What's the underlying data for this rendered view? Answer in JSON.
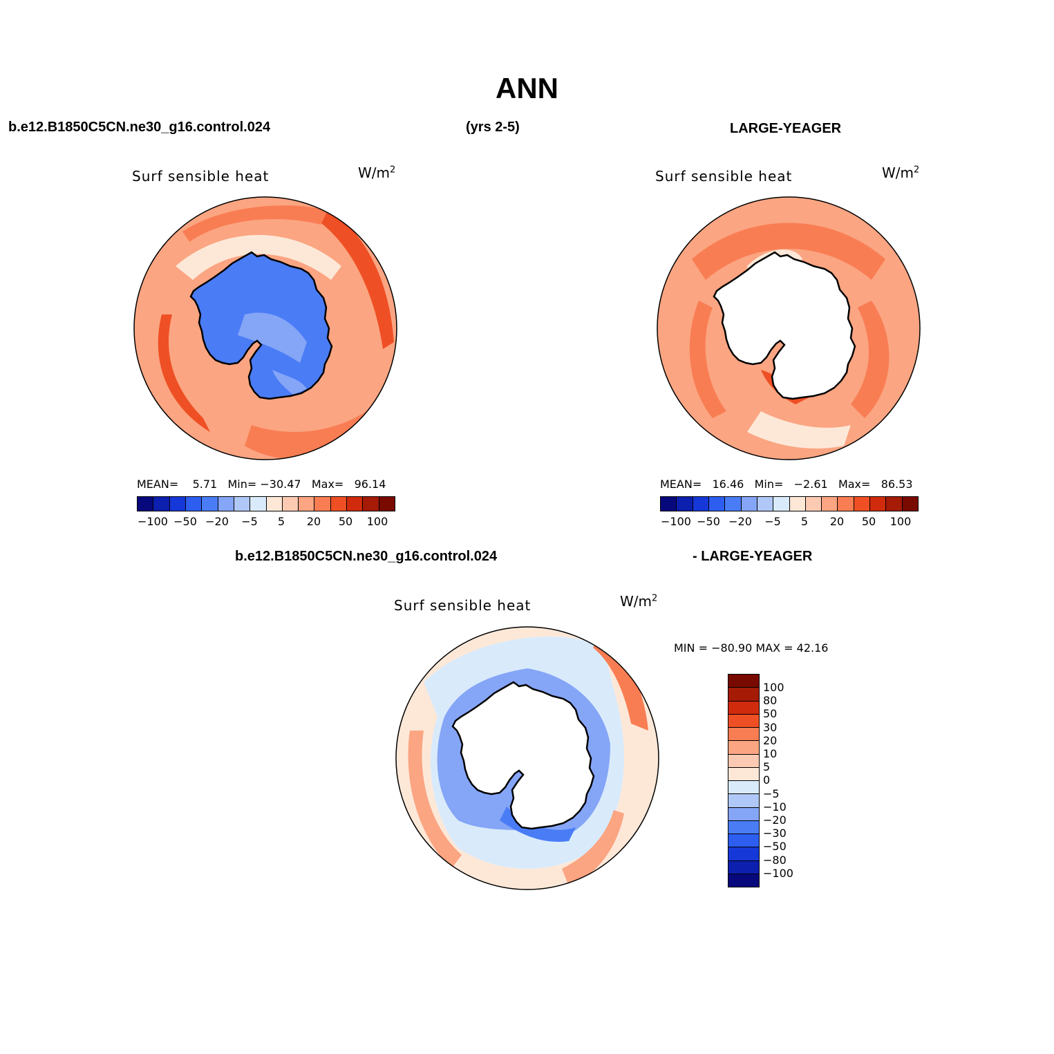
{
  "title": "ANN",
  "header": {
    "case": "b.e12.B1850C5CN.ne30_g16.control.024",
    "years": "(yrs 2-5)",
    "reference": "LARGE-YEAGER",
    "diff_case": "b.e12.B1850C5CN.ne30_g16.control.024",
    "diff_reference": "- LARGE-YEAGER"
  },
  "colors": {
    "levels": [
      "#08087d",
      "#0d1fae",
      "#1638d8",
      "#2d5ef0",
      "#4a7cf6",
      "#85a5f7",
      "#b0c8f7",
      "#d9ebfb",
      "#fde8d8",
      "#fccab2",
      "#fba582",
      "#f97d53",
      "#ef4f24",
      "#d02b0d",
      "#a51b06",
      "#780a00"
    ],
    "diff_levels": [
      "#780a00",
      "#a51b06",
      "#d02b0d",
      "#ef4f24",
      "#f97d53",
      "#fba582",
      "#fccab2",
      "#fde8d8",
      "#d9ebfb",
      "#b0c8f7",
      "#85a5f7",
      "#4a7cf6",
      "#2d5ef0",
      "#1638d8",
      "#0d1fae",
      "#08087d"
    ],
    "land_model": "#4a7cf6",
    "land_model_light": "#85a5f7",
    "ocean_base": "#fba582",
    "ocean_light": "#fde8d8",
    "ocean_dark": "#f97d53",
    "ocean_darkest": "#ef4f24",
    "diff_ocean_base": "#d9ebfb",
    "diff_blue": "#85a5f7",
    "diff_dark_blue": "#4a7cf6"
  },
  "panels": [
    {
      "label": "Surf sensible heat",
      "units": "W/m",
      "units_exp": "2",
      "stats": {
        "mean_label": "MEAN=",
        "mean": "5.71",
        "min_label": "Min=",
        "min": "−30.47",
        "max_label": "Max=",
        "max": "96.14"
      },
      "ticks": [
        "−100",
        "−50",
        "−20",
        "−5",
        "5",
        "20",
        "50",
        "100"
      ]
    },
    {
      "label": "Surf sensible heat",
      "units": "W/m",
      "units_exp": "2",
      "stats": {
        "mean_label": "MEAN=",
        "mean": "16.46",
        "min_label": "Min=",
        "min": "−2.61",
        "max_label": "Max=",
        "max": "86.53"
      },
      "ticks": [
        "−100",
        "−50",
        "−20",
        "−5",
        "5",
        "20",
        "50",
        "100"
      ]
    },
    {
      "label": "Surf sensible heat",
      "units": "W/m",
      "units_exp": "2",
      "stats_text": "MIN = −80.90 MAX =  42.16",
      "ticks": [
        "100",
        "80",
        "50",
        "30",
        "20",
        "10",
        "5",
        "0",
        "−5",
        "−10",
        "−20",
        "−30",
        "−50",
        "−80",
        "−100"
      ]
    }
  ]
}
